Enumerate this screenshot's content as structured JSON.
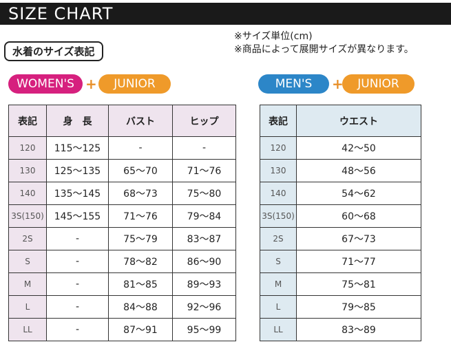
{
  "header": {
    "title": "SIZE CHART"
  },
  "section_label": "水着のサイズ表記",
  "notes": [
    "※サイズ単位(cm)",
    "※商品によって展開サイズが異なります。"
  ],
  "women": {
    "badges": [
      "WOMEN'S",
      "+",
      "JUNIOR"
    ],
    "table": {
      "columns": [
        "表記",
        "身　長",
        "バスト",
        "ヒップ"
      ],
      "rows": [
        [
          "120",
          "115～125",
          "-",
          "-"
        ],
        [
          "130",
          "125～135",
          "65～70",
          "71～76"
        ],
        [
          "140",
          "135～145",
          "68～73",
          "75～80"
        ],
        [
          "3S(150)",
          "145～155",
          "71～76",
          "79～84"
        ],
        [
          "2S",
          "-",
          "75～79",
          "83～87"
        ],
        [
          "S",
          "-",
          "78～82",
          "86～90"
        ],
        [
          "M",
          "-",
          "81～85",
          "89～93"
        ],
        [
          "L",
          "-",
          "84～88",
          "92～96"
        ],
        [
          "LL",
          "-",
          "87～91",
          "95～99"
        ]
      ]
    }
  },
  "men": {
    "badges": [
      "MEN'S",
      "+",
      "JUNIOR"
    ],
    "table": {
      "columns": [
        "表記",
        "ウエスト"
      ],
      "rows": [
        [
          "120",
          "42～50"
        ],
        [
          "130",
          "48～56"
        ],
        [
          "140",
          "54～62"
        ],
        [
          "3S(150)",
          "60～68"
        ],
        [
          "2S",
          "67～73"
        ],
        [
          "S",
          "71～77"
        ],
        [
          "M",
          "75～81"
        ],
        [
          "L",
          "79～85"
        ],
        [
          "LL",
          "83～89"
        ]
      ]
    }
  }
}
